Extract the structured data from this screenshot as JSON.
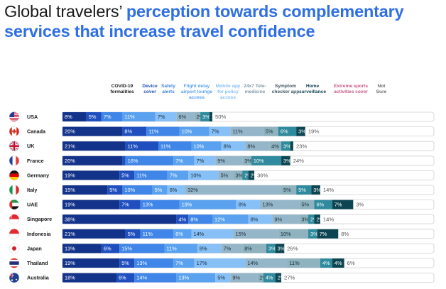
{
  "title": {
    "part1": "Global travelers’ ",
    "part2": "perception towards complementary services that increase travel confidence"
  },
  "colors": [
    "#13338a",
    "#1f4fbf",
    "#3f86e8",
    "#5aa2f0",
    "#86c0f7",
    "#95b6c9",
    "#8eb3bf",
    "#2e8a9c",
    "#0d4552",
    "#c8568a",
    "#f2f2f2"
  ],
  "chart_data": {
    "type": "bar",
    "orientation": "horizontal",
    "stacked": true,
    "title": "Global travelers’ perception towards complementary services that increase travel confidence",
    "series": [
      {
        "name": "COVID-19 formalities",
        "color": "#13338a"
      },
      {
        "name": "Device cover",
        "color": "#1f4fbf"
      },
      {
        "name": "Safety alerts",
        "color": "#3f86e8"
      },
      {
        "name": "Flight delay airport lounge access",
        "color": "#5aa2f0"
      },
      {
        "name": "Mobile app for policy access",
        "color": "#86c0f7"
      },
      {
        "name": "24x7 Tele-medicine",
        "color": "#95b6c9"
      },
      {
        "name": "Symptom checker app",
        "color": "#8eb3bf"
      },
      {
        "name": "Home surveillance",
        "color": "#2e8a9c"
      },
      {
        "name": "Extreme sports activities cover",
        "color": "#0d4552"
      },
      {
        "name": "Not Sure",
        "color": "#c8568a"
      }
    ],
    "categories": [
      "USA",
      "Canada",
      "UK",
      "France",
      "Germany",
      "Italy",
      "UAE",
      "Singapore",
      "Indonesia",
      "Japan",
      "Thailand",
      "Australia"
    ],
    "rows": [
      {
        "country": "USA",
        "values": [
          8,
          5,
          7,
          11,
          7,
          6,
          2,
          3,
          1
        ],
        "outside": 50
      },
      {
        "country": "Canada",
        "values": [
          20,
          8,
          11,
          10,
          7,
          11,
          5,
          6,
          3
        ],
        "outside": 19
      },
      {
        "country": "UK",
        "values": [
          21,
          11,
          11,
          10,
          8,
          8,
          4,
          3,
          1
        ],
        "outside": 23
      },
      {
        "country": "France",
        "values": [
          20,
          1,
          16,
          7,
          7,
          9,
          3,
          10,
          3
        ],
        "outside": 24
      },
      {
        "country": "Germany",
        "values": [
          19,
          5,
          11,
          7,
          10,
          5,
          3,
          2,
          2
        ],
        "outside": 36
      },
      {
        "country": "Italy",
        "values": [
          15,
          5,
          10,
          5,
          6,
          32,
          5,
          5,
          3
        ],
        "outside": 14
      },
      {
        "country": "UAE",
        "values": [
          19,
          7,
          13,
          19,
          8,
          13,
          5,
          6,
          7
        ],
        "outside": 3
      },
      {
        "country": "Singapore",
        "values": [
          38,
          4,
          8,
          12,
          8,
          9,
          3,
          2,
          2
        ],
        "outside": 14
      },
      {
        "country": "Indonesia",
        "values": [
          21,
          5,
          11,
          6,
          14,
          15,
          10,
          3,
          7
        ],
        "outside": 8
      },
      {
        "country": "Japan",
        "values": [
          13,
          6,
          15,
          11,
          8,
          7,
          8,
          3,
          3
        ],
        "outside": 26
      },
      {
        "country": "Thailand",
        "values": [
          19,
          5,
          13,
          7,
          17,
          14,
          11,
          4,
          4
        ],
        "outside": 6
      },
      {
        "country": "Australia",
        "values": [
          18,
          6,
          14,
          13,
          5,
          9,
          2,
          4,
          2
        ],
        "outside": 27
      }
    ],
    "value_suffix": "%",
    "flags": [
      "us-flag-icon",
      "canada-flag-icon",
      "uk-flag-icon",
      "france-flag-icon",
      "germany-flag-icon",
      "italy-flag-icon",
      "uae-flag-icon",
      "singapore-flag-icon",
      "indonesia-flag-icon",
      "japan-flag-icon",
      "thailand-flag-icon",
      "australia-flag-icon"
    ]
  },
  "legend": [
    {
      "label": "COVID-19\nformalities",
      "color": "#1a1a1a"
    },
    {
      "label": "Device\ncover",
      "color": "#1f4fbf"
    },
    {
      "label": "Safety\nalerts",
      "color": "#3f86e8"
    },
    {
      "label": "Flight delay\nairport lounge\naccess",
      "color": "#5aa2f0"
    },
    {
      "label": "Mobile app\nfor policy\naccess",
      "color": "#86c0f7"
    },
    {
      "label": "24x7 Tele-\nmedicine",
      "color": "#7f98a6"
    },
    {
      "label": "Symptom\nchecker app",
      "color": "#3d5561"
    },
    {
      "label": "Home\nsurveillance",
      "color": "#0d4552"
    },
    {
      "label": "Extreme sports\nactivities cover",
      "color": "#c8568a"
    },
    {
      "label": "Not\nSure",
      "color": "#6d6d6d"
    }
  ]
}
